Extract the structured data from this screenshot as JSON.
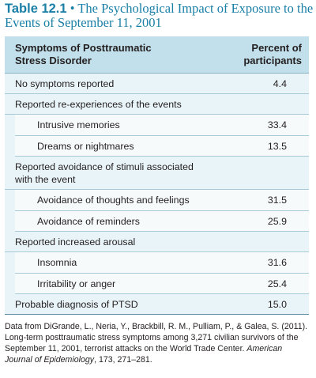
{
  "title": {
    "number": "Table 12.1",
    "separator": " • ",
    "text": "The Psychological Impact of Exposure to the Events of September 11, 2001"
  },
  "table": {
    "header_left_line1": "Symptoms of Posttraumatic",
    "header_left_line2": "Stress Disorder",
    "header_right_line1": "Percent of",
    "header_right_line2": "participants",
    "rows": [
      {
        "label": "No symptoms reported",
        "value": "4.4"
      },
      {
        "label": "Reported re-experiences of the events",
        "value": ""
      },
      {
        "label": "Intrusive memories",
        "value": "33.4"
      },
      {
        "label": "Dreams or nightmares",
        "value": "13.5"
      },
      {
        "label": "Reported avoidance of stimuli associated with the event",
        "value": ""
      },
      {
        "label": "Avoidance of thoughts and feelings",
        "value": "31.5"
      },
      {
        "label": "Avoidance of reminders",
        "value": "25.9"
      },
      {
        "label": "Reported increased arousal",
        "value": ""
      },
      {
        "label": "Insomnia",
        "value": "31.6"
      },
      {
        "label": "Irritability or anger",
        "value": "25.4"
      },
      {
        "label": "Probable diagnosis of PTSD",
        "value": "15.0"
      }
    ]
  },
  "footer": {
    "text_before": "Data from DiGrande, L., Neria, Y., Brackbill, R. M., Pulliam, P., & Galea, S. (2011). Long-term posttraumatic stress symptoms among 3,271 civilian survivors of the September 11, 2001, terrorist attacks on the World Trade Center. ",
    "journal": "American Journal of Epidemiology",
    "text_after": ", 173, 271–281."
  }
}
